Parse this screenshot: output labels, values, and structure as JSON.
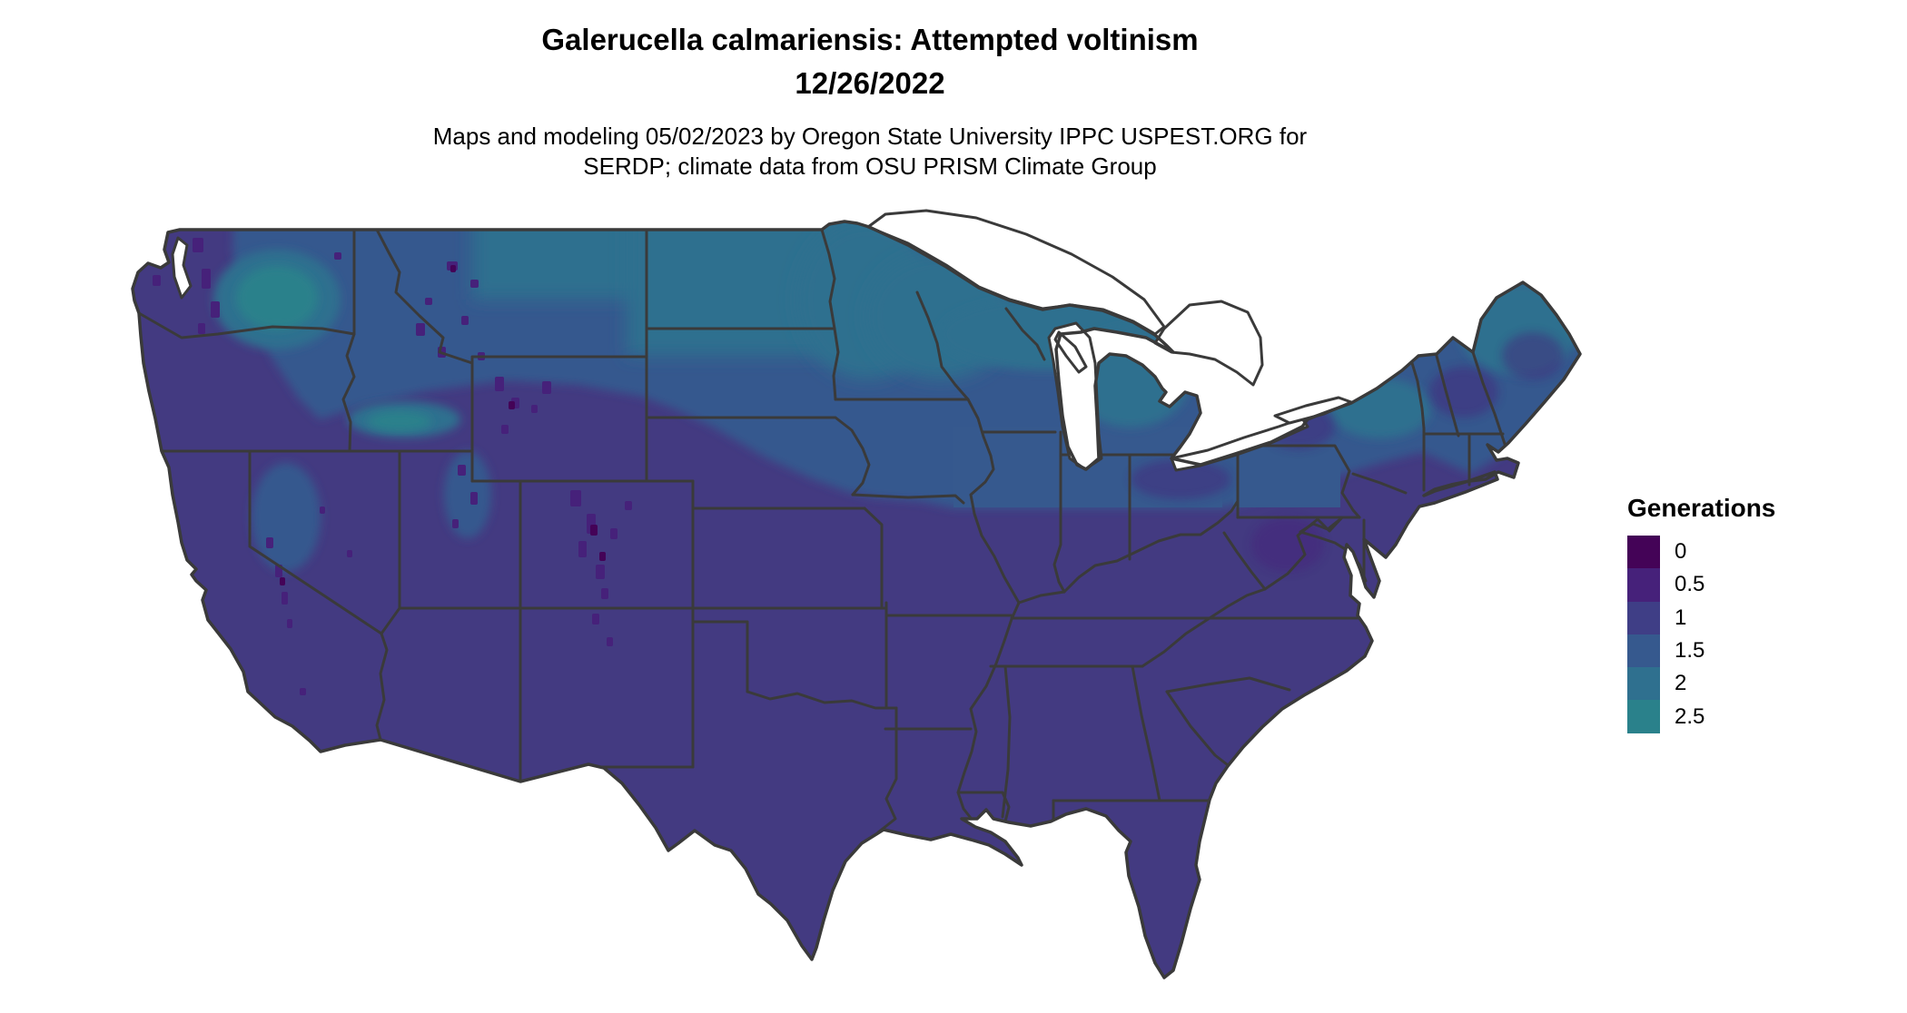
{
  "header": {
    "title_line1": "Galerucella calmariensis: Attempted voltinism",
    "title_line2": "12/26/2022",
    "subtitle_line1": "Maps and modeling 05/02/2023 by Oregon State University IPPC USPEST.ORG for",
    "subtitle_line2": "SERDP; climate data from OSU PRISM Climate Group"
  },
  "legend": {
    "title": "Generations",
    "entries": [
      {
        "label": "0",
        "color": "#440357"
      },
      {
        "label": "0.5",
        "color": "#46217A"
      },
      {
        "label": "1",
        "color": "#3F3E86"
      },
      {
        "label": "1.5",
        "color": "#36598E"
      },
      {
        "label": "2",
        "color": "#2F708F"
      },
      {
        "label": "2.5",
        "color": "#2A818B"
      }
    ]
  },
  "map": {
    "region": "Continental United States",
    "variable": "Attempted voltinism (generations)",
    "base_color": "#433A81",
    "border_color": "#3A3A3A",
    "water_color": "#FFFFFF"
  }
}
